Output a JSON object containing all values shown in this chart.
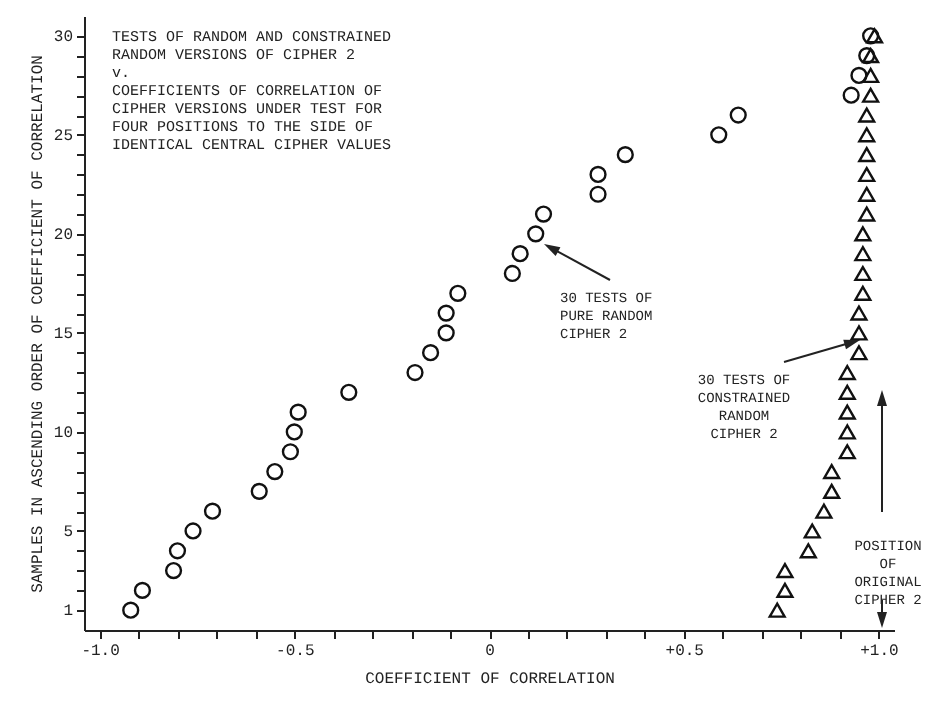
{
  "chart_data": {
    "type": "scatter",
    "title": "TESTS OF RANDOM AND CONSTRAINED\nRANDOM VERSIONS OF CIPHER 2\nv.\nCOEFFICIENTS OF CORRELATION OF\nCIPHER VERSIONS UNDER TEST FOR\nFOUR POSITIONS TO THE SIDE OF\nIDENTICAL CENTRAL CIPHER VALUES",
    "xlabel": "COEFFICIENT OF CORRELATION",
    "ylabel": "SAMPLES IN ASCENDING ORDER OF COEFFICIENT OF CORRELATION",
    "xlim": [
      -1.04,
      1.04
    ],
    "ylim": [
      0,
      31
    ],
    "xticks": [
      {
        "value": -1.0,
        "label": "-1.0"
      },
      {
        "value": -0.9,
        "label": null
      },
      {
        "value": -0.8,
        "label": null
      },
      {
        "value": -0.7,
        "label": null
      },
      {
        "value": -0.6,
        "label": null
      },
      -0.5,
      {
        "value": -0.4,
        "label": null
      },
      {
        "value": -0.3,
        "label": null
      },
      {
        "value": -0.2,
        "label": null
      },
      {
        "value": -0.1,
        "label": null
      },
      0,
      {
        "value": 0.1,
        "label": null
      },
      {
        "value": 0.2,
        "label": null
      },
      {
        "value": 0.3,
        "label": null
      },
      {
        "value": 0.4,
        "label": null
      },
      {
        "value": 0.5,
        "label": "+0.5"
      },
      {
        "value": 0.6,
        "label": null
      },
      {
        "value": 0.7,
        "label": null
      },
      {
        "value": 0.8,
        "label": null
      },
      {
        "value": 0.9,
        "label": null
      },
      {
        "value": 1.0,
        "label": "+1.0"
      }
    ],
    "yticks": [
      1,
      {
        "value": 2,
        "label": null
      },
      {
        "value": 3,
        "label": null
      },
      {
        "value": 4,
        "label": null
      },
      5,
      {
        "value": 6,
        "label": null
      },
      {
        "value": 7,
        "label": null
      },
      {
        "value": 8,
        "label": null
      },
      {
        "value": 9,
        "label": null
      },
      10,
      {
        "value": 11,
        "label": null
      },
      {
        "value": 12,
        "label": null
      },
      {
        "value": 13,
        "label": null
      },
      {
        "value": 14,
        "label": null
      },
      15,
      {
        "value": 16,
        "label": null
      },
      {
        "value": 17,
        "label": null
      },
      {
        "value": 18,
        "label": null
      },
      {
        "value": 19,
        "label": null
      },
      20,
      {
        "value": 21,
        "label": null
      },
      {
        "value": 22,
        "label": null
      },
      {
        "value": 23,
        "label": null
      },
      {
        "value": 24,
        "label": null
      },
      25,
      {
        "value": 26,
        "label": null
      },
      {
        "value": 27,
        "label": null
      },
      {
        "value": 28,
        "label": null
      },
      {
        "value": 29,
        "label": null
      },
      30
    ],
    "grid": false,
    "series": [
      {
        "color": "#111111",
        "marker": "circle",
        "x": [
          -0.92,
          -0.89,
          -0.81,
          -0.8,
          -0.76,
          -0.71,
          -0.59,
          -0.55,
          -0.51,
          -0.5,
          -0.49,
          -0.36,
          -0.19,
          -0.15,
          -0.11,
          -0.11,
          -0.08,
          0.06,
          0.08,
          0.12,
          0.14,
          0.28,
          0.28,
          0.35,
          0.59,
          0.64,
          0.93,
          0.95,
          0.97,
          0.98
        ],
        "values": [
          1,
          2,
          3,
          4,
          5,
          6,
          7,
          8,
          9,
          10,
          11,
          12,
          13,
          14,
          15,
          16,
          17,
          18,
          19,
          20,
          21,
          22,
          23,
          24,
          25,
          26,
          27,
          28,
          29,
          30
        ]
      },
      {
        "color": "#111111",
        "marker": "triangle",
        "x": [
          0.74,
          0.76,
          0.76,
          0.82,
          0.83,
          0.86,
          0.88,
          0.88,
          0.92,
          0.92,
          0.92,
          0.92,
          0.92,
          0.95,
          0.95,
          0.95,
          0.96,
          0.96,
          0.96,
          0.96,
          0.97,
          0.97,
          0.97,
          0.97,
          0.97,
          0.97,
          0.98,
          0.98,
          0.98,
          0.99
        ],
        "values": [
          1,
          2,
          3,
          4,
          5,
          6,
          7,
          8,
          9,
          10,
          11,
          12,
          13,
          14,
          15,
          16,
          17,
          18,
          19,
          20,
          21,
          22,
          23,
          24,
          25,
          26,
          27,
          28,
          29,
          30
        ]
      }
    ],
    "annotations": [
      "30 TESTS OF\nPURE RANDOM\nCIPHER 2",
      "30 TESTS OF\nCONSTRAINED\nRANDOM\nCIPHER 2",
      "POSITION\nOF\nORIGINAL\nCIPHER 2"
    ]
  }
}
